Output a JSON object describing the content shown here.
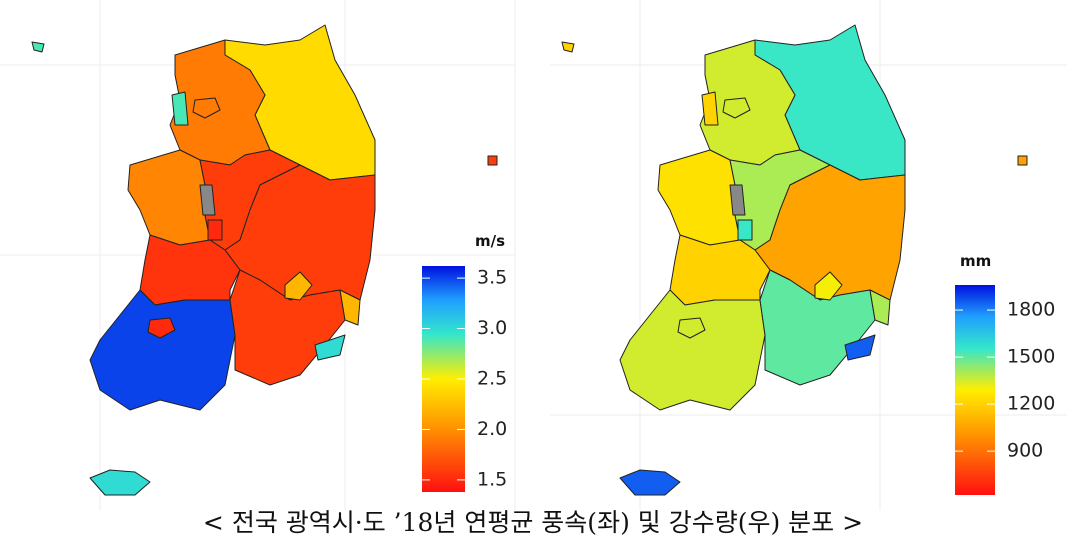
{
  "maps": [
    {
      "unit": "m/s",
      "range": [
        1.38,
        3.62
      ],
      "ticks": [
        3.5,
        {
          "value": 3,
          "label": "3.0"
        },
        2.5,
        {
          "value": 2,
          "label": "2.0"
        },
        1.5
      ],
      "regions": [
        2.4,
        1.9,
        1.9,
        2.9,
        1.95,
        1.6,
        null,
        1.5,
        1.6,
        2.2,
        1.55,
        1.5,
        3.5,
        1.6,
        2.2,
        3.0,
        3.0
      ]
    },
    {
      "unit": "mm",
      "range": [
        620,
        1960
      ],
      "ticks": [
        1800,
        1500,
        1200,
        900
      ],
      "regions": [
        1550,
        1350,
        1350,
        1200,
        1250,
        1400,
        null,
        1550,
        1050,
        1300,
        1200,
        1350,
        1350,
        1500,
        1400,
        1850,
        1850
      ]
    }
  ],
  "caption": "< 전국 광역시·도 ’18년 연평균 풍속(좌) 및 강수량(우) 분포 >"
}
